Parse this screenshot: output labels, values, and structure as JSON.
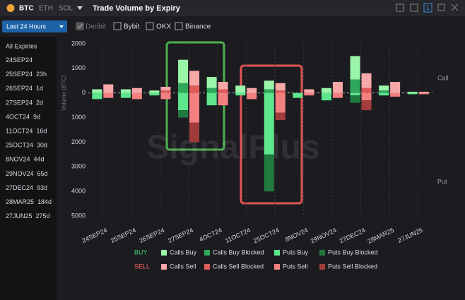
{
  "header": {
    "tabs": [
      "BTC",
      "ETH",
      "SOL"
    ],
    "title": "Trade Volume by Expiry",
    "badge": "1"
  },
  "toolbar": {
    "range": "Last 24 Hours",
    "exchanges": [
      "Deribit",
      "Bybit",
      "OKX",
      "Binance"
    ]
  },
  "sidebar": {
    "all": "All Expiries",
    "items": [
      {
        "date": "24SEP24"
      },
      {
        "date": "25SEP24",
        "dte": "23h"
      },
      {
        "date": "26SEP24",
        "dte": "1d"
      },
      {
        "date": "27SEP24",
        "dte": "2d"
      },
      {
        "date": "4OCT24",
        "dte": "9d"
      },
      {
        "date": "11OCT24",
        "dte": "16d"
      },
      {
        "date": "25OCT24",
        "dte": "30d"
      },
      {
        "date": "8NOV24",
        "dte": "44d"
      },
      {
        "date": "29NOV24",
        "dte": "65d"
      },
      {
        "date": "27DEC24",
        "dte": "93d"
      },
      {
        "date": "28MAR25",
        "dte": "184d"
      },
      {
        "date": "27JUN25",
        "dte": "275d"
      }
    ]
  },
  "chart_data": {
    "type": "bar",
    "y_label": "Volume (BTC)",
    "watermark": "SignalPlus",
    "side_labels": [
      "Call",
      "Put"
    ],
    "categories": [
      "24SEP24",
      "25SEP24",
      "26SEP24",
      "27SEP24",
      "4OCT24",
      "11OCT24",
      "25OCT24",
      "8NOV24",
      "29NOV24",
      "27DEC24",
      "28MAR25",
      "27JUN25"
    ],
    "ylim": [
      -5000,
      2000
    ],
    "yticks": [
      2000,
      1000,
      0,
      {
        "value": -1000,
        "label": "1000"
      },
      {
        "value": -2000,
        "label": "2000"
      },
      {
        "value": -3000,
        "label": "3000"
      },
      {
        "value": -4000,
        "label": "4000"
      },
      {
        "value": -5000,
        "label": "5000"
      }
    ],
    "grid": true,
    "legend_groups": [
      {
        "name": "BUY",
        "color": "#3fd46f"
      },
      {
        "name": "SELL",
        "color": "#f06060"
      }
    ],
    "series": [
      {
        "name": "Calls Buy",
        "color": "#9af5a8",
        "values": [
          150,
          150,
          100,
          950,
          450,
          300,
          350,
          0,
          200,
          950,
          200,
          50
        ]
      },
      {
        "name": "Calls Buy Blocked",
        "color": "#2fa85c",
        "values": [
          0,
          0,
          0,
          400,
          200,
          0,
          150,
          0,
          0,
          550,
          100,
          0
        ]
      },
      {
        "name": "Puts Buy",
        "color": "#5ee68c",
        "values": [
          -250,
          -200,
          -100,
          -700,
          -500,
          -100,
          -2500,
          -200,
          -300,
          -100,
          -100,
          -50
        ]
      },
      {
        "name": "Puts Buy Blocked",
        "color": "#207a40",
        "values": [
          0,
          0,
          0,
          -300,
          0,
          0,
          -1500,
          0,
          0,
          -300,
          0,
          0
        ]
      },
      {
        "name": "Calls Sell",
        "color": "#f7a8a8",
        "values": [
          350,
          200,
          150,
          600,
          300,
          200,
          300,
          150,
          450,
          600,
          450,
          50
        ]
      },
      {
        "name": "Calls Sell Blocked",
        "color": "#e05a5a",
        "values": [
          0,
          0,
          100,
          300,
          150,
          0,
          100,
          0,
          0,
          200,
          0,
          0
        ]
      },
      {
        "name": "Puts Sell",
        "color": "#f38080",
        "values": [
          -200,
          -250,
          -250,
          -1200,
          -500,
          -250,
          -800,
          -100,
          -200,
          -300,
          -150,
          -50
        ]
      },
      {
        "name": "Puts Sell Blocked",
        "color": "#a23c3c",
        "values": [
          0,
          0,
          0,
          -800,
          0,
          0,
          -300,
          0,
          0,
          -400,
          0,
          0
        ]
      }
    ]
  }
}
